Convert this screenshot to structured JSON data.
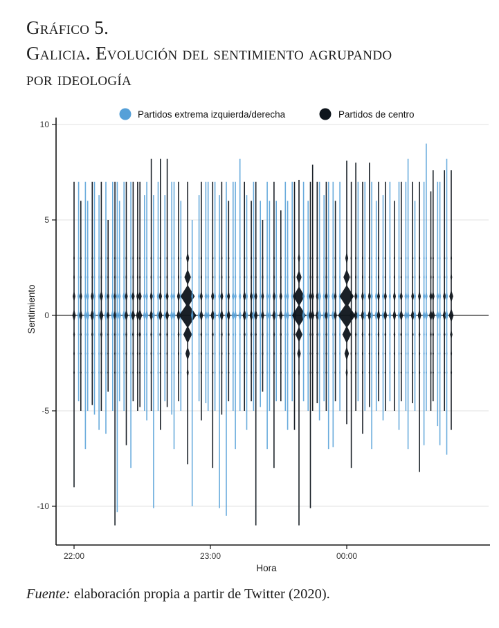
{
  "figure": {
    "caption": {
      "line1": "Gráfico 5.",
      "line2": "Galicia. Evolución del sentimiento agrupando",
      "line3": "por ideología"
    },
    "source": {
      "prefix": "Fuente:",
      "text": " elaboración propia a partir de Twitter (2020)."
    }
  },
  "chart_data": {
    "type": "violin",
    "title": "Galicia. Evolución del sentimiento agrupando por ideología",
    "xlabel": "Hora",
    "ylabel": "Sentimiento",
    "x_tick_labels": [
      "22:00",
      "23:00",
      "00:00"
    ],
    "y_ticks": [
      10,
      5,
      0,
      -5,
      -10
    ],
    "y_tick_labels": [
      "10",
      "5",
      "0",
      "-5",
      "-10"
    ],
    "ylim": [
      -11.5,
      10
    ],
    "grid": "horizontal-major",
    "zero_line": true,
    "legend_position": "top",
    "legend": [
      {
        "key": "ext",
        "label": "Partidos extrema izquierda/derecha",
        "color": "#55a0d8"
      },
      {
        "key": "cen",
        "label": "Partidos de centro",
        "color": "#0e151c"
      }
    ],
    "violin_fields": [
      "time",
      "group",
      "sentiment_max",
      "sentiment_min",
      "peak_density_width_px"
    ],
    "violin_density_peaks": "density bulges at sentiment 0, ±1, ±2, ±3 (largest at 0 and 1)",
    "violins": [
      [
        "22:00",
        "cen",
        7,
        -9,
        5
      ],
      [
        "22:02",
        "ext",
        7,
        -4.5,
        4
      ],
      [
        "22:03",
        "cen",
        6,
        -5,
        4.5
      ],
      [
        "22:05",
        "ext",
        7,
        -7,
        4
      ],
      [
        "22:06",
        "ext",
        6,
        -5,
        5
      ],
      [
        "22:08",
        "cen",
        7,
        -4.7,
        5.5
      ],
      [
        "22:09",
        "ext",
        7,
        -5.2,
        4
      ],
      [
        "22:11",
        "ext",
        6.3,
        -6,
        4
      ],
      [
        "22:12",
        "cen",
        7,
        -5,
        6
      ],
      [
        "22:14",
        "ext",
        7,
        -6.2,
        4.5
      ],
      [
        "22:15",
        "cen",
        5,
        -4,
        4
      ],
      [
        "22:17",
        "ext",
        7,
        -5,
        5
      ],
      [
        "22:18",
        "cen",
        7,
        -11,
        4
      ],
      [
        "22:19",
        "ext",
        7,
        -10.3,
        4
      ],
      [
        "22:20",
        "ext",
        6,
        -4.5,
        4.5
      ],
      [
        "22:22",
        "ext",
        7,
        -5,
        5
      ],
      [
        "22:23",
        "cen",
        7,
        -6.8,
        5
      ],
      [
        "22:25",
        "ext",
        7,
        -8,
        4
      ],
      [
        "22:26",
        "cen",
        7,
        -4.5,
        5.5
      ],
      [
        "22:28",
        "cen",
        7,
        -5,
        4.5
      ],
      [
        "22:29",
        "cen",
        7,
        -4.8,
        6
      ],
      [
        "22:31",
        "ext",
        6.3,
        -5,
        4
      ],
      [
        "22:32",
        "ext",
        7,
        -5.5,
        4.5
      ],
      [
        "22:34",
        "cen",
        8.2,
        -5,
        5
      ],
      [
        "22:35",
        "ext",
        6.3,
        -10.1,
        4
      ],
      [
        "22:37",
        "ext",
        7,
        -5,
        4.5
      ],
      [
        "22:38",
        "cen",
        8.2,
        -6,
        5.5
      ],
      [
        "22:40",
        "ext",
        6.3,
        -4.5,
        4
      ],
      [
        "22:41",
        "cen",
        8.2,
        -4.8,
        5
      ],
      [
        "22:43",
        "ext",
        7,
        -5.2,
        4.5
      ],
      [
        "22:44",
        "ext",
        7,
        -7,
        4
      ],
      [
        "22:46",
        "cen",
        7,
        -4.5,
        5.5
      ],
      [
        "22:47",
        "ext",
        6,
        -5,
        4
      ],
      [
        "22:50",
        "cen",
        7,
        -7.8,
        25
      ],
      [
        "22:52",
        "ext",
        5,
        -10,
        3.5
      ],
      [
        "22:55",
        "ext",
        6.3,
        -4.5,
        4
      ],
      [
        "22:56",
        "cen",
        7,
        -5.5,
        5
      ],
      [
        "22:58",
        "ext",
        7,
        -4.6,
        4.5
      ],
      [
        "22:59",
        "ext",
        7,
        -5,
        4
      ],
      [
        "23:01",
        "cen",
        7,
        -8,
        5.5
      ],
      [
        "23:02",
        "ext",
        7,
        -5,
        4
      ],
      [
        "23:04",
        "ext",
        6.3,
        -10.1,
        4.5
      ],
      [
        "23:05",
        "cen",
        7,
        -5.2,
        5
      ],
      [
        "23:07",
        "ext",
        7,
        -10.5,
        4
      ],
      [
        "23:08",
        "cen",
        6,
        -4.5,
        5
      ],
      [
        "23:10",
        "ext",
        7,
        -5,
        4.5
      ],
      [
        "23:11",
        "ext",
        7,
        -7,
        4
      ],
      [
        "23:13",
        "ext",
        8.2,
        -5,
        4.5
      ],
      [
        "23:15",
        "cen",
        7,
        -5,
        5.5
      ],
      [
        "23:16",
        "ext",
        6.3,
        -6,
        4
      ],
      [
        "23:18",
        "cen",
        6,
        -4.5,
        5
      ],
      [
        "23:19",
        "ext",
        7,
        -5,
        4.5
      ],
      [
        "23:20",
        "cen",
        7,
        -11,
        5
      ],
      [
        "23:22",
        "ext",
        6,
        -4.8,
        4
      ],
      [
        "23:23",
        "cen",
        5,
        -4,
        4.5
      ],
      [
        "23:25",
        "ext",
        7,
        -7,
        4
      ],
      [
        "23:26",
        "ext",
        6,
        -5,
        4.5
      ],
      [
        "23:28",
        "cen",
        7,
        -8,
        5
      ],
      [
        "23:29",
        "ext",
        6,
        -4.5,
        4
      ],
      [
        "23:31",
        "cen",
        5.5,
        -4.5,
        5
      ],
      [
        "23:33",
        "ext",
        7,
        -5,
        4
      ],
      [
        "23:34",
        "ext",
        6,
        -6,
        4.5
      ],
      [
        "23:36",
        "ext",
        7,
        -4.5,
        4
      ],
      [
        "23:37",
        "cen",
        7,
        -6,
        5
      ],
      [
        "23:39",
        "cen",
        7.1,
        -11,
        20
      ],
      [
        "23:41",
        "ext",
        7,
        -4.5,
        4
      ],
      [
        "23:43",
        "ext",
        6,
        -5,
        4.5
      ],
      [
        "23:44",
        "cen",
        7,
        -10.1,
        4.5
      ],
      [
        "23:45",
        "cen",
        7.9,
        -5,
        5
      ],
      [
        "23:47",
        "cen",
        7,
        -4.6,
        4.5
      ],
      [
        "23:48",
        "ext",
        7,
        -5.5,
        6
      ],
      [
        "23:50",
        "ext",
        6.3,
        -4.5,
        4
      ],
      [
        "23:51",
        "cen",
        7,
        -5,
        4.5
      ],
      [
        "23:52",
        "ext",
        7,
        -7,
        4
      ],
      [
        "23:54",
        "ext",
        7,
        -6.9,
        5
      ],
      [
        "23:55",
        "cen",
        6,
        -4.5,
        4.5
      ],
      [
        "23:57",
        "ext",
        7,
        -5,
        4
      ],
      [
        "00:00",
        "cen",
        8.1,
        -5.7,
        25
      ],
      [
        "00:02",
        "cen",
        7,
        -8,
        4.5
      ],
      [
        "00:04",
        "cen",
        8,
        -5,
        5
      ],
      [
        "00:05",
        "ext",
        7,
        -4.5,
        4
      ],
      [
        "00:07",
        "cen",
        7,
        -6.2,
        5
      ],
      [
        "00:08",
        "ext",
        7,
        -5,
        4.5
      ],
      [
        "00:10",
        "cen",
        8,
        -4.8,
        5
      ],
      [
        "00:11",
        "ext",
        7,
        -7,
        4
      ],
      [
        "00:13",
        "ext",
        6,
        -5,
        4.5
      ],
      [
        "00:14",
        "cen",
        7,
        -4.5,
        5
      ],
      [
        "00:16",
        "ext",
        6.3,
        -5.5,
        4
      ],
      [
        "00:17",
        "cen",
        7,
        -5,
        5
      ],
      [
        "00:19",
        "ext",
        7,
        -4.5,
        4
      ],
      [
        "00:21",
        "cen",
        6,
        -5,
        5
      ],
      [
        "00:23",
        "ext",
        7,
        -6,
        4
      ],
      [
        "00:24",
        "cen",
        7,
        -4.5,
        5
      ],
      [
        "00:26",
        "ext",
        7,
        -5,
        4.5
      ],
      [
        "00:27",
        "ext",
        8.2,
        -7,
        4
      ],
      [
        "00:29",
        "cen",
        7,
        -4.6,
        5
      ],
      [
        "00:30",
        "ext",
        6,
        -5,
        4
      ],
      [
        "00:32",
        "cen",
        7,
        -8.2,
        5
      ],
      [
        "00:34",
        "ext",
        7,
        -6.8,
        4
      ],
      [
        "00:35",
        "ext",
        9,
        -5,
        4.5
      ],
      [
        "00:37",
        "cen",
        6.5,
        -5,
        5
      ],
      [
        "00:38",
        "cen",
        7.6,
        -4.5,
        5
      ],
      [
        "00:40",
        "ext",
        7,
        -5.8,
        4.5
      ],
      [
        "00:41",
        "ext",
        7,
        -6.8,
        4
      ],
      [
        "00:43",
        "cen",
        7.6,
        -5,
        5
      ],
      [
        "00:44",
        "ext",
        8.2,
        -7.3,
        4.5
      ],
      [
        "00:46",
        "cen",
        7.6,
        -6,
        7
      ]
    ]
  },
  "colors": {
    "background": "#ffffff",
    "gridline": "#e7e7e7",
    "zero_line": "#4d4d4d",
    "axis": "#141414",
    "tick_text": "#333333"
  }
}
